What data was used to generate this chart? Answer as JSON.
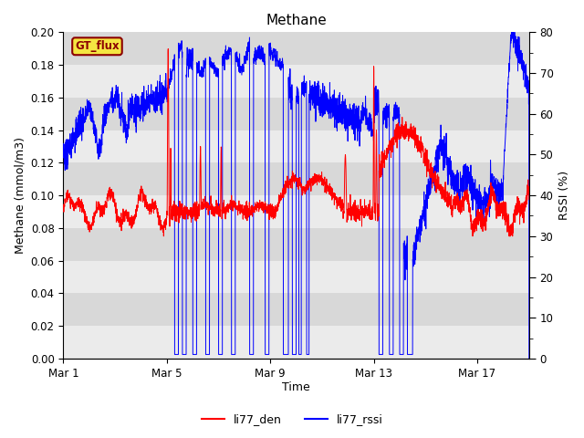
{
  "title": "Methane",
  "xlabel": "Time",
  "ylabel_left": "Methane (mmol/m3)",
  "ylabel_right": "RSSI (%)",
  "ylim_left": [
    0.0,
    0.2
  ],
  "ylim_right": [
    0,
    80
  ],
  "yticks_left": [
    0.0,
    0.02,
    0.04,
    0.06,
    0.08,
    0.1,
    0.12,
    0.14,
    0.16,
    0.18,
    0.2
  ],
  "yticks_right_major": [
    0,
    10,
    20,
    30,
    40,
    50,
    60,
    70,
    80
  ],
  "xtick_labels": [
    "Mar 1",
    "Mar 5",
    "Mar 9",
    "Mar 13",
    "Mar 17"
  ],
  "xtick_positions": [
    0,
    4,
    8,
    12,
    16
  ],
  "total_days": 18,
  "legend_labels": [
    "li77_den",
    "li77_rssi"
  ],
  "gt_flux_label": "GT_flux",
  "fig_bg": "#ffffff",
  "plot_bg": "#ffffff",
  "stripe_light": "#ebebeb",
  "stripe_dark": "#d8d8d8",
  "title_fontsize": 11,
  "label_fontsize": 9,
  "tick_fontsize": 8.5
}
